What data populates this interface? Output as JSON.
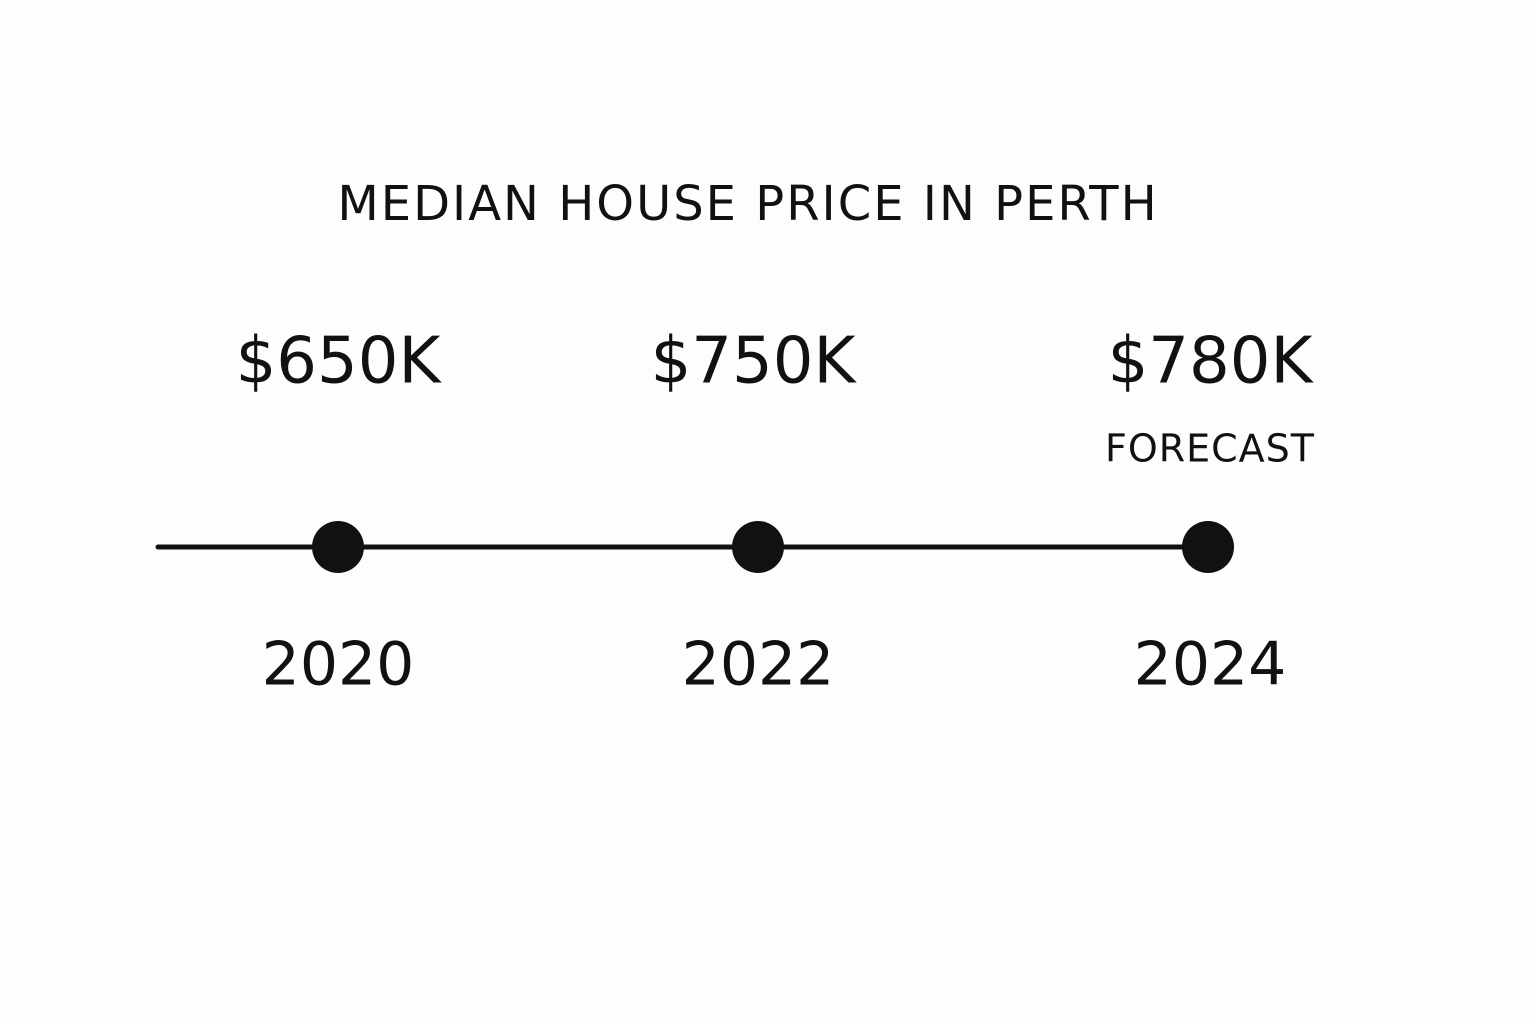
{
  "title": "MEDIAN HOUSE PRICE IN PERTH",
  "nodes": [
    {
      "price": "$650K",
      "year": "2020"
    },
    {
      "price": "$750K",
      "year": "2022"
    },
    {
      "price": "$780K",
      "note": "FORECAST",
      "year": "2024"
    }
  ]
}
